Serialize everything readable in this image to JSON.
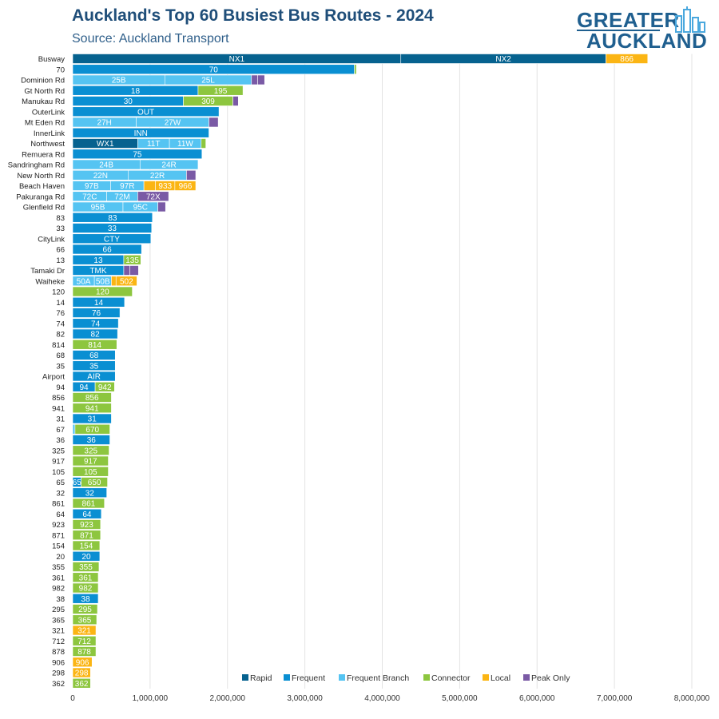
{
  "logo": {
    "line1": "GREATER",
    "line2": "AUCKLAND"
  },
  "chart_data": {
    "type": "bar",
    "orientation": "horizontal",
    "stacked": true,
    "title": "Auckland's Top 60 Busiest Bus Routes - 2024",
    "subtitle": "Source: Auckland Transport",
    "xlim": [
      0,
      8000000
    ],
    "x_ticks": [
      0,
      1000000,
      2000000,
      3000000,
      4000000,
      5000000,
      6000000,
      7000000,
      8000000
    ],
    "x_tick_labels": [
      "0",
      "1,000,000",
      "2,000,000",
      "3,000,000",
      "4,000,000",
      "5,000,000",
      "6,000,000",
      "7,000,000",
      "8,000,000"
    ],
    "grid": "vertical",
    "legend_position": "bottom-right",
    "legend": [
      {
        "name": "Rapid",
        "color": "#06628f"
      },
      {
        "name": "Frequent",
        "color": "#0a8fd2"
      },
      {
        "name": "Frequent Branch",
        "color": "#55c4f2"
      },
      {
        "name": "Connector",
        "color": "#8dc63f"
      },
      {
        "name": "Local",
        "color": "#fbb514"
      },
      {
        "name": "Peak Only",
        "color": "#7a5aa5"
      }
    ],
    "categories": [
      "Busway",
      "70",
      "Dominion Rd",
      "Gt North Rd",
      "Manukau Rd",
      "OuterLink",
      "Mt Eden Rd",
      "InnerLink",
      "Northwest",
      "Remuera Rd",
      "Sandringham Rd",
      "New North Rd",
      "Beach Haven",
      "Pakuranga Rd",
      "Glenfield Rd",
      "83",
      "33",
      "CityLink",
      "66",
      "13",
      "Tamaki Dr",
      "Waiheke",
      "120",
      "14",
      "76",
      "74",
      "82",
      "814",
      "68",
      "35",
      "Airport",
      "94",
      "856",
      "941",
      "31",
      "67",
      "36",
      "325",
      "917",
      "105",
      "65",
      "32",
      "861",
      "64",
      "923",
      "871",
      "154",
      "20",
      "355",
      "361",
      "982",
      "38",
      "295",
      "365",
      "321",
      "712",
      "878",
      "906",
      "298",
      "362"
    ],
    "rows": [
      {
        "category": "Busway",
        "segments": [
          {
            "label": "NX1",
            "type": "Rapid",
            "value": 4240000
          },
          {
            "label": "NX2",
            "type": "Rapid",
            "value": 2650000
          },
          {
            "label": "866",
            "type": "Local",
            "value": 540000
          }
        ]
      },
      {
        "category": "70",
        "segments": [
          {
            "label": "70",
            "type": "Frequent",
            "value": 3640000
          },
          {
            "label": "",
            "type": "Connector",
            "value": 25000
          }
        ]
      },
      {
        "category": "Dominion Rd",
        "segments": [
          {
            "label": "25B",
            "type": "Frequent Branch",
            "value": 1190000
          },
          {
            "label": "25L",
            "type": "Frequent Branch",
            "value": 1120000
          },
          {
            "label": "",
            "type": "Peak Only",
            "value": 80000
          },
          {
            "label": "",
            "type": "Peak Only",
            "value": 90000
          }
        ]
      },
      {
        "category": "Gt North Rd",
        "segments": [
          {
            "label": "18",
            "type": "Frequent",
            "value": 1620000
          },
          {
            "label": "195",
            "type": "Connector",
            "value": 580000
          }
        ]
      },
      {
        "category": "Manukau Rd",
        "segments": [
          {
            "label": "30",
            "type": "Frequent",
            "value": 1430000
          },
          {
            "label": "309",
            "type": "Connector",
            "value": 640000
          },
          {
            "label": "",
            "type": "Peak Only",
            "value": 70000
          }
        ]
      },
      {
        "category": "OuterLink",
        "segments": [
          {
            "label": "OUT",
            "type": "Frequent",
            "value": 1890000
          }
        ]
      },
      {
        "category": "Mt Eden Rd",
        "segments": [
          {
            "label": "27H",
            "type": "Frequent Branch",
            "value": 820000
          },
          {
            "label": "27W",
            "type": "Frequent Branch",
            "value": 940000
          },
          {
            "label": "",
            "type": "Peak Only",
            "value": 120000
          }
        ]
      },
      {
        "category": "InnerLink",
        "segments": [
          {
            "label": "INN",
            "type": "Frequent",
            "value": 1760000
          }
        ]
      },
      {
        "category": "Northwest",
        "segments": [
          {
            "label": "WX1",
            "type": "Rapid",
            "value": 840000
          },
          {
            "label": "11T",
            "type": "Frequent Branch",
            "value": 410000
          },
          {
            "label": "11W",
            "type": "Frequent Branch",
            "value": 410000
          },
          {
            "label": "",
            "type": "Connector",
            "value": 60000
          }
        ]
      },
      {
        "category": "Remuera Rd",
        "segments": [
          {
            "label": "75",
            "type": "Frequent",
            "value": 1670000
          }
        ]
      },
      {
        "category": "Sandringham Rd",
        "segments": [
          {
            "label": "24B",
            "type": "Frequent Branch",
            "value": 870000
          },
          {
            "label": "24R",
            "type": "Frequent Branch",
            "value": 750000
          }
        ]
      },
      {
        "category": "New North Rd",
        "segments": [
          {
            "label": "22N",
            "type": "Frequent Branch",
            "value": 720000
          },
          {
            "label": "22R",
            "type": "Frequent Branch",
            "value": 750000
          },
          {
            "label": "",
            "type": "Peak Only",
            "value": 120000
          }
        ]
      },
      {
        "category": "Beach Haven",
        "segments": [
          {
            "label": "97B",
            "type": "Frequent Branch",
            "value": 490000
          },
          {
            "label": "97R",
            "type": "Frequent Branch",
            "value": 430000
          },
          {
            "label": "",
            "type": "Local",
            "value": 150000
          },
          {
            "label": "933",
            "type": "Local",
            "value": 250000
          },
          {
            "label": "966",
            "type": "Local",
            "value": 270000
          }
        ]
      },
      {
        "category": "Pakuranga Rd",
        "segments": [
          {
            "label": "72C",
            "type": "Frequent Branch",
            "value": 440000
          },
          {
            "label": "72M",
            "type": "Frequent Branch",
            "value": 400000
          },
          {
            "label": "72X",
            "type": "Peak Only",
            "value": 400000
          }
        ]
      },
      {
        "category": "Glenfield Rd",
        "segments": [
          {
            "label": "95B",
            "type": "Frequent Branch",
            "value": 650000
          },
          {
            "label": "95C",
            "type": "Frequent Branch",
            "value": 450000
          },
          {
            "label": "",
            "type": "Peak Only",
            "value": 100000
          }
        ]
      },
      {
        "category": "83",
        "segments": [
          {
            "label": "83",
            "type": "Frequent",
            "value": 1030000
          }
        ]
      },
      {
        "category": "33",
        "segments": [
          {
            "label": "33",
            "type": "Frequent",
            "value": 1020000
          }
        ]
      },
      {
        "category": "CityLink",
        "segments": [
          {
            "label": "CTY",
            "type": "Frequent",
            "value": 1010000
          }
        ]
      },
      {
        "category": "66",
        "segments": [
          {
            "label": "66",
            "type": "Frequent",
            "value": 890000
          }
        ]
      },
      {
        "category": "13",
        "segments": [
          {
            "label": "13",
            "type": "Frequent",
            "value": 660000
          },
          {
            "label": "135",
            "type": "Connector",
            "value": 220000
          }
        ]
      },
      {
        "category": "Tamaki Dr",
        "segments": [
          {
            "label": "TMK",
            "type": "Frequent",
            "value": 660000
          },
          {
            "label": "",
            "type": "Peak Only",
            "value": 80000
          },
          {
            "label": "",
            "type": "Peak Only",
            "value": 110000
          }
        ]
      },
      {
        "category": "Waiheke",
        "segments": [
          {
            "label": "50A",
            "type": "Frequent Branch",
            "value": 280000
          },
          {
            "label": "50B",
            "type": "Frequent Branch",
            "value": 220000
          },
          {
            "label": "",
            "type": "Local",
            "value": 60000
          },
          {
            "label": "502",
            "type": "Local",
            "value": 270000
          }
        ]
      },
      {
        "category": "120",
        "segments": [
          {
            "label": "120",
            "type": "Connector",
            "value": 770000
          }
        ]
      },
      {
        "category": "14",
        "segments": [
          {
            "label": "14",
            "type": "Frequent",
            "value": 670000
          }
        ]
      },
      {
        "category": "76",
        "segments": [
          {
            "label": "76",
            "type": "Frequent",
            "value": 610000
          }
        ]
      },
      {
        "category": "74",
        "segments": [
          {
            "label": "74",
            "type": "Frequent",
            "value": 590000
          }
        ]
      },
      {
        "category": "82",
        "segments": [
          {
            "label": "82",
            "type": "Frequent",
            "value": 580000
          }
        ]
      },
      {
        "category": "814",
        "segments": [
          {
            "label": "814",
            "type": "Connector",
            "value": 570000
          }
        ]
      },
      {
        "category": "68",
        "segments": [
          {
            "label": "68",
            "type": "Frequent",
            "value": 550000
          }
        ]
      },
      {
        "category": "35",
        "segments": [
          {
            "label": "35",
            "type": "Frequent",
            "value": 550000
          }
        ]
      },
      {
        "category": "Airport",
        "segments": [
          {
            "label": "AIR",
            "type": "Frequent",
            "value": 550000
          }
        ]
      },
      {
        "category": "94",
        "segments": [
          {
            "label": "94",
            "type": "Frequent",
            "value": 290000
          },
          {
            "label": "942",
            "type": "Connector",
            "value": 250000
          }
        ]
      },
      {
        "category": "856",
        "segments": [
          {
            "label": "856",
            "type": "Connector",
            "value": 500000
          }
        ]
      },
      {
        "category": "941",
        "segments": [
          {
            "label": "941",
            "type": "Connector",
            "value": 500000
          }
        ]
      },
      {
        "category": "31",
        "segments": [
          {
            "label": "31",
            "type": "Frequent",
            "value": 500000
          }
        ]
      },
      {
        "category": "67",
        "segments": [
          {
            "label": "",
            "type": "Frequent Branch",
            "value": 30000
          },
          {
            "label": "670",
            "type": "Connector",
            "value": 450000
          }
        ]
      },
      {
        "category": "36",
        "segments": [
          {
            "label": "36",
            "type": "Frequent",
            "value": 480000
          }
        ]
      },
      {
        "category": "325",
        "segments": [
          {
            "label": "325",
            "type": "Connector",
            "value": 470000
          }
        ]
      },
      {
        "category": "917",
        "segments": [
          {
            "label": "917",
            "type": "Connector",
            "value": 460000
          }
        ]
      },
      {
        "category": "105",
        "segments": [
          {
            "label": "105",
            "type": "Connector",
            "value": 460000
          }
        ]
      },
      {
        "category": "65",
        "segments": [
          {
            "label": "65",
            "type": "Frequent",
            "value": 110000
          },
          {
            "label": "650",
            "type": "Connector",
            "value": 340000
          }
        ]
      },
      {
        "category": "32",
        "segments": [
          {
            "label": "32",
            "type": "Frequent",
            "value": 440000
          }
        ]
      },
      {
        "category": "861",
        "segments": [
          {
            "label": "861",
            "type": "Connector",
            "value": 410000
          }
        ]
      },
      {
        "category": "64",
        "segments": [
          {
            "label": "64",
            "type": "Frequent",
            "value": 370000
          }
        ]
      },
      {
        "category": "923",
        "segments": [
          {
            "label": "923",
            "type": "Connector",
            "value": 360000
          }
        ]
      },
      {
        "category": "871",
        "segments": [
          {
            "label": "871",
            "type": "Connector",
            "value": 360000
          }
        ]
      },
      {
        "category": "154",
        "segments": [
          {
            "label": "154",
            "type": "Connector",
            "value": 350000
          }
        ]
      },
      {
        "category": "20",
        "segments": [
          {
            "label": "20",
            "type": "Frequent",
            "value": 350000
          }
        ]
      },
      {
        "category": "355",
        "segments": [
          {
            "label": "355",
            "type": "Connector",
            "value": 340000
          }
        ]
      },
      {
        "category": "361",
        "segments": [
          {
            "label": "361",
            "type": "Connector",
            "value": 330000
          }
        ]
      },
      {
        "category": "982",
        "segments": [
          {
            "label": "982",
            "type": "Connector",
            "value": 330000
          }
        ]
      },
      {
        "category": "38",
        "segments": [
          {
            "label": "38",
            "type": "Frequent",
            "value": 330000
          }
        ]
      },
      {
        "category": "295",
        "segments": [
          {
            "label": "295",
            "type": "Connector",
            "value": 320000
          }
        ]
      },
      {
        "category": "365",
        "segments": [
          {
            "label": "365",
            "type": "Connector",
            "value": 310000
          }
        ]
      },
      {
        "category": "321",
        "segments": [
          {
            "label": "321",
            "type": "Local",
            "value": 300000
          }
        ]
      },
      {
        "category": "712",
        "segments": [
          {
            "label": "712",
            "type": "Connector",
            "value": 300000
          }
        ]
      },
      {
        "category": "878",
        "segments": [
          {
            "label": "878",
            "type": "Connector",
            "value": 300000
          }
        ]
      },
      {
        "category": "906",
        "segments": [
          {
            "label": "906",
            "type": "Local",
            "value": 250000
          }
        ]
      },
      {
        "category": "298",
        "segments": [
          {
            "label": "298",
            "type": "Local",
            "value": 230000
          }
        ]
      },
      {
        "category": "362",
        "segments": [
          {
            "label": "362",
            "type": "Connector",
            "value": 230000
          }
        ]
      }
    ]
  }
}
